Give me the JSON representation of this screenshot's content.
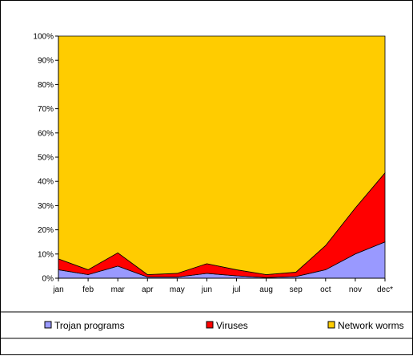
{
  "chart_data": {
    "type": "area",
    "stacked": true,
    "percent": true,
    "categories": [
      "jan",
      "feb",
      "mar",
      "apr",
      "may",
      "jun",
      "jul",
      "aug",
      "sep",
      "oct",
      "nov",
      "dec*"
    ],
    "y_ticks": [
      "0%",
      "10%",
      "20%",
      "30%",
      "40%",
      "50%",
      "60%",
      "70%",
      "80%",
      "90%",
      "100%"
    ],
    "ylim": [
      0,
      100
    ],
    "grid": false,
    "legend_position": "bottom",
    "series": [
      {
        "name": "Trojan programs",
        "color": "#9999ff",
        "values": [
          3.5,
          1.5,
          5,
          0.5,
          0.5,
          2,
          1,
          0.3,
          0.7,
          3.5,
          10,
          15
        ]
      },
      {
        "name": "Viruses",
        "color": "#ff0000",
        "values": [
          4.5,
          2,
          5.5,
          1,
          1.5,
          4,
          2.5,
          1.2,
          1.8,
          10,
          19,
          28.5
        ]
      },
      {
        "name": "Network worms",
        "color": "#ffcc00",
        "values": [
          92,
          96.5,
          89.5,
          98.5,
          98,
          94,
          96.5,
          98.5,
          97.5,
          86.5,
          71,
          56.5
        ]
      }
    ]
  }
}
